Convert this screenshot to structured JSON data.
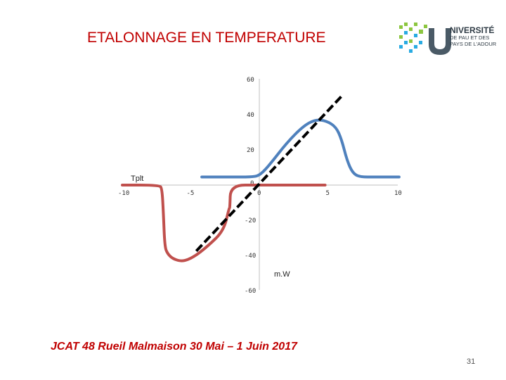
{
  "slide": {
    "title": "ETALONNAGE EN TEMPERATURE",
    "footer": "JCAT 48 Rueil Malmaison 30 Mai – 1 Juin 2017",
    "page_number": "31"
  },
  "logo": {
    "line1": "NIVERSITÉ",
    "line2": "DE PAU ET DES",
    "line3": "PAYS DE L'ADOUR",
    "colors": [
      "#8cc63f",
      "#29abe2",
      "#4a5a66"
    ]
  },
  "colors": {
    "title": "#c00000",
    "blue_series": "#4f81bd",
    "red_series": "#c0504d",
    "dashed_line": "#000000"
  },
  "chart_data": {
    "type": "line",
    "xlabel": "m.W",
    "ylabel": "Tplt",
    "xlim": [
      -10,
      10
    ],
    "ylim": [
      -60,
      60
    ],
    "x_ticks": [
      -10,
      -5,
      0,
      5,
      10
    ],
    "y_ticks": [
      60,
      40,
      20,
      0,
      -20,
      -40,
      -60
    ],
    "x_tick_labels": [
      "-10",
      "-5",
      "0",
      "5",
      "10"
    ],
    "y_tick_labels": [
      "60",
      "40",
      "20",
      "0",
      "-20",
      "-40",
      "-60"
    ],
    "series": [
      {
        "color": "#4f81bd",
        "style": "solid",
        "points": [
          [
            -4.2,
            4.6
          ],
          [
            -2.0,
            4.6
          ],
          [
            -0.4,
            4.6
          ],
          [
            0.1,
            6
          ],
          [
            0.8,
            12
          ],
          [
            2.0,
            24
          ],
          [
            3.2,
            33.5
          ],
          [
            4.1,
            37.3
          ],
          [
            4.9,
            36.5
          ],
          [
            5.6,
            33
          ],
          [
            6.0,
            26
          ],
          [
            6.4,
            14
          ],
          [
            6.8,
            7
          ],
          [
            7.3,
            4.6
          ],
          [
            8.5,
            4.6
          ],
          [
            10.2,
            4.6
          ]
        ]
      },
      {
        "color": "#c0504d",
        "style": "solid",
        "points": [
          [
            -10.0,
            0
          ],
          [
            -7.3,
            0
          ],
          [
            -7.1,
            -2
          ],
          [
            -7.0,
            -16
          ],
          [
            -6.9,
            -35
          ],
          [
            -6.7,
            -39
          ],
          [
            -6.3,
            -42
          ],
          [
            -5.6,
            -43.5
          ],
          [
            -4.8,
            -41
          ],
          [
            -3.8,
            -35
          ],
          [
            -2.6,
            -26
          ],
          [
            -2.2,
            -13
          ],
          [
            -2.15,
            -13
          ],
          [
            -2.1,
            0
          ],
          [
            0.0,
            0
          ],
          [
            4.8,
            0
          ]
        ]
      },
      {
        "color": "#000000",
        "style": "dashed",
        "points": [
          [
            -4.6,
            -37.5
          ],
          [
            6.0,
            50.5
          ]
        ]
      }
    ]
  }
}
